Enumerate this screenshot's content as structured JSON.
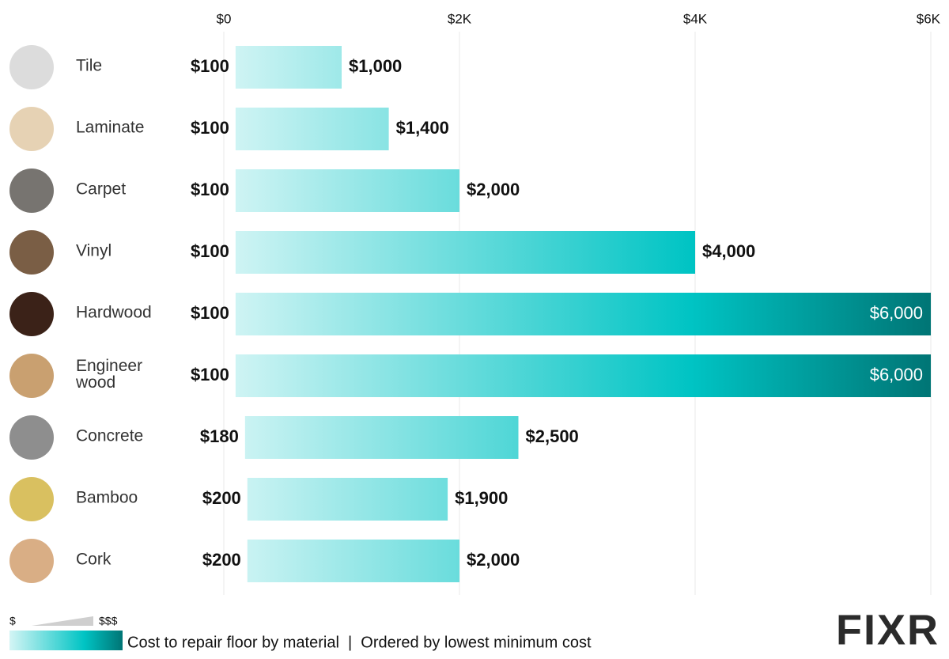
{
  "chart_data": {
    "type": "range-bar",
    "categories": [
      "Tile",
      "Laminate",
      "Carpet",
      "Vinyl",
      "Hardwood",
      "Engineer wood",
      "Concrete",
      "Bamboo",
      "Cork"
    ],
    "swatch_colors": [
      "#dcdcdc",
      "#e6d2b4",
      "#777470",
      "#7a5e45",
      "#3b2218",
      "#c9a070",
      "#8e8e8e",
      "#d9c060",
      "#d9ae85"
    ],
    "series": [
      {
        "values": [
          100,
          100,
          100,
          100,
          100,
          100,
          180,
          200,
          200
        ],
        "value_labels": [
          "$100",
          "$100",
          "$100",
          "$100",
          "$100",
          "$100",
          "$180",
          "$200",
          "$200"
        ]
      },
      {
        "values": [
          1000,
          1400,
          2000,
          4000,
          6000,
          6000,
          2500,
          1900,
          2000
        ],
        "value_labels": [
          "$1,000",
          "$1,400",
          "$2,000",
          "$4,000",
          "$6,000",
          "$6,000",
          "$2,500",
          "$1,900",
          "$2,000"
        ]
      }
    ],
    "xlim": [
      0,
      6000
    ],
    "xticks": [
      {
        "value": 0,
        "label": "$0"
      },
      {
        "value": 2000,
        "label": "$2K"
      },
      {
        "value": 4000,
        "label": "$4K"
      },
      {
        "value": 6000,
        "label": "$6K"
      }
    ],
    "gradient": [
      "#d4f5f5",
      "#00c4c4",
      "#007575"
    ],
    "grid": true,
    "legend_low": "$",
    "legend_high": "$$$",
    "caption": "Cost to repair floor by material  |  Ordered by lowest minimum cost",
    "logo": "FIXR"
  }
}
